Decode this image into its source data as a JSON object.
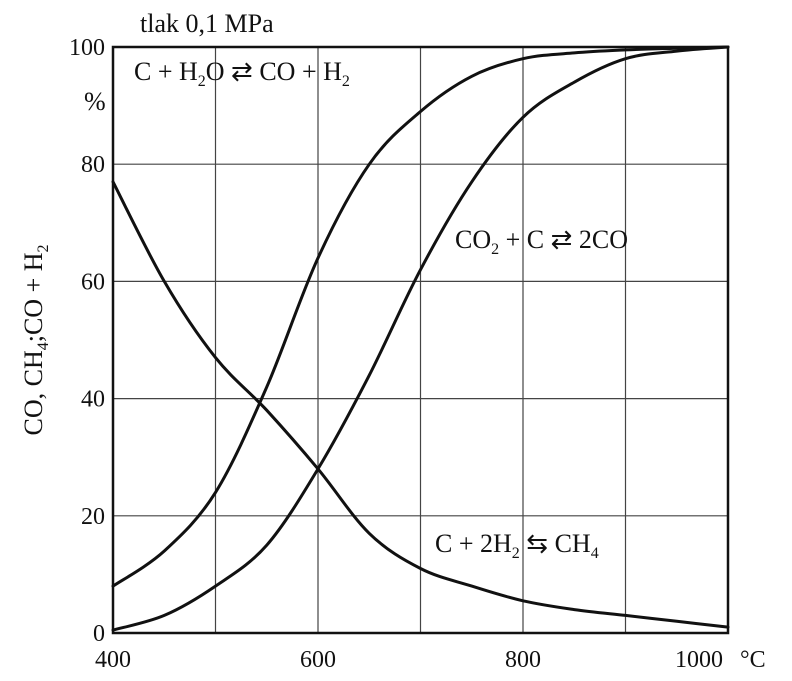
{
  "chart_data": {
    "type": "line",
    "title": "tlak  0,1 MPa",
    "ylabel_parts": [
      "CO, CH",
      "4",
      ";CO + H",
      "2"
    ],
    "y_unit": "%",
    "x_unit": "°C",
    "xlim": [
      400,
      1000
    ],
    "ylim": [
      0,
      100
    ],
    "x_ticks": [
      "400",
      "600",
      "800",
      "1000"
    ],
    "y_ticks": [
      "0",
      "20",
      "40",
      "60",
      "80",
      "100"
    ],
    "grid": true,
    "x": [
      400,
      450,
      500,
      550,
      600,
      650,
      700,
      750,
      800,
      850,
      900,
      950,
      1000
    ],
    "series": [
      {
        "label_parts": [
          "C + H",
          "2",
          "O ⇄ CO + H",
          "2"
        ],
        "values": [
          8,
          14,
          24,
          42,
          64,
          80,
          89,
          95,
          98,
          99,
          99.5,
          99.8,
          100
        ]
      },
      {
        "label_parts": [
          "CO",
          "2",
          " + C ⇄ 2CO"
        ],
        "values": [
          0.5,
          3,
          8,
          15,
          28,
          44,
          62,
          77,
          88,
          94,
          98,
          99.3,
          100
        ]
      },
      {
        "label_parts": [
          "C + 2H",
          "2",
          " ⇆ CH",
          "4"
        ],
        "values": [
          77,
          60,
          47,
          38,
          28,
          17,
          11,
          8,
          5.5,
          4,
          3,
          2,
          1
        ]
      }
    ]
  }
}
